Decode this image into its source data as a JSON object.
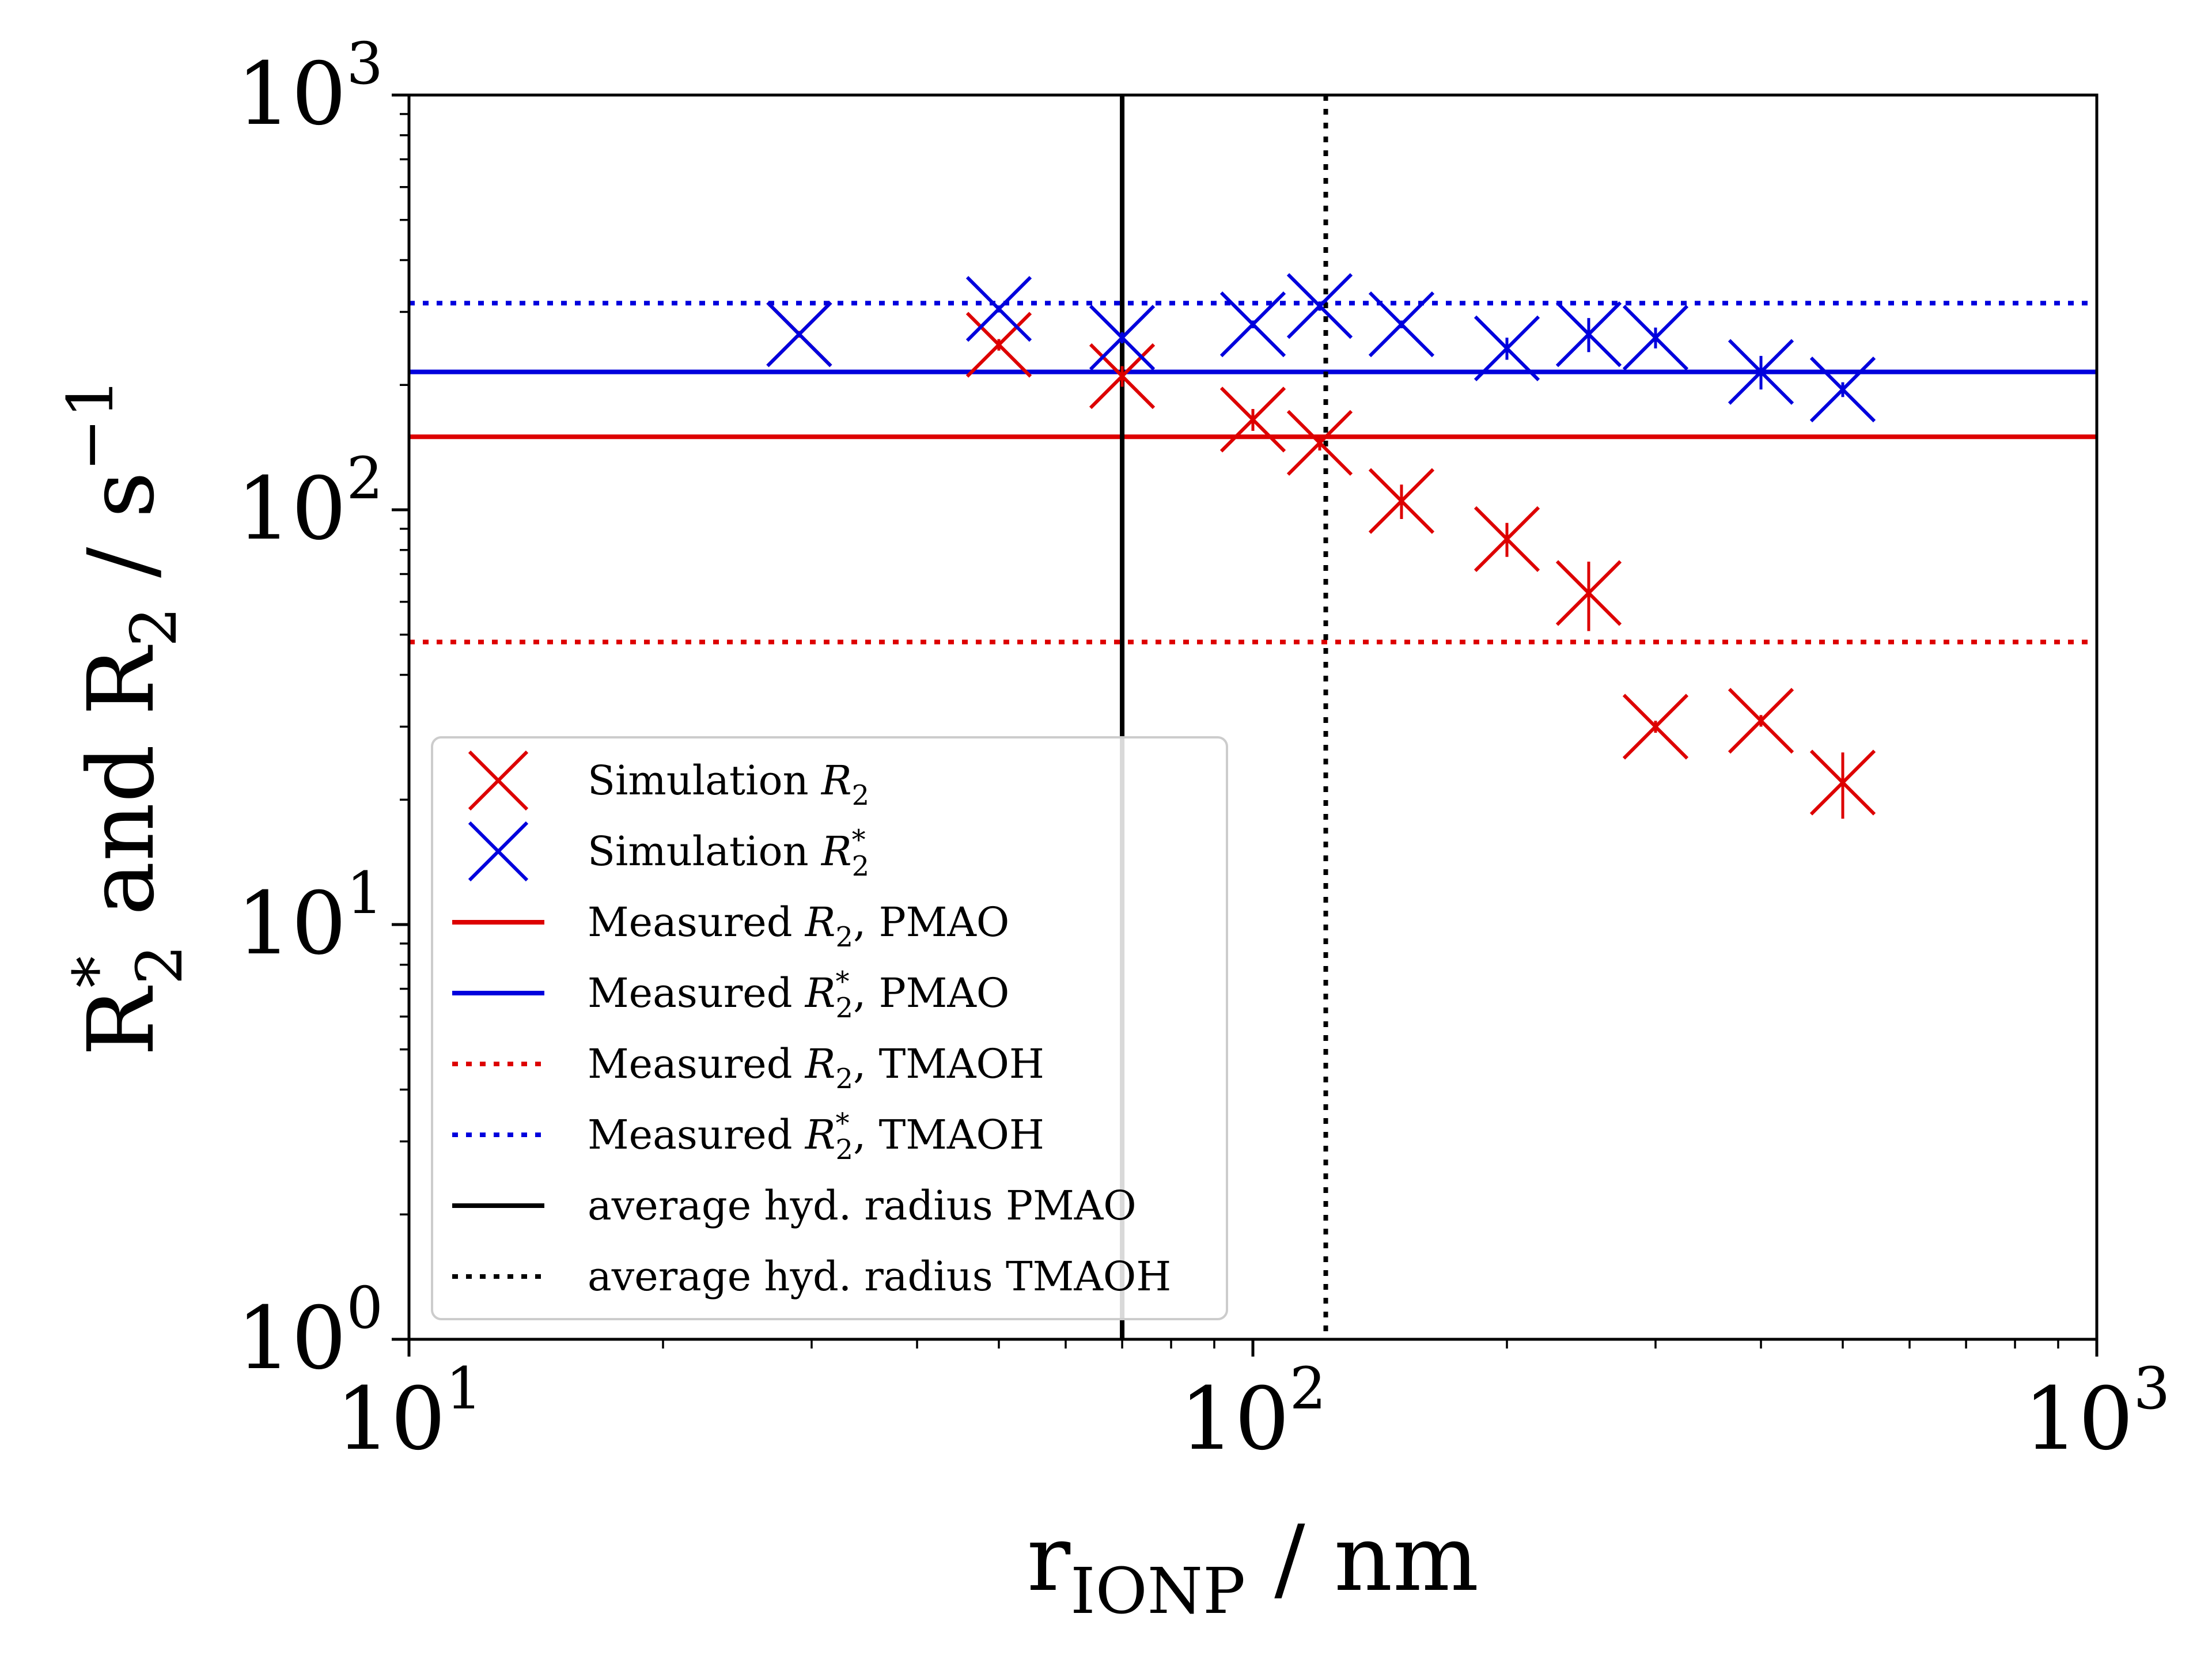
{
  "chart_data": {
    "type": "scatter",
    "x_scale": "log",
    "y_scale": "log",
    "xlim": [
      10,
      1000
    ],
    "ylim": [
      1,
      1000
    ],
    "x_ticks": [
      {
        "value": 10,
        "base": "10",
        "exp": "1"
      },
      {
        "value": 100,
        "base": "10",
        "exp": "2"
      },
      {
        "value": 1000,
        "base": "10",
        "exp": "3"
      }
    ],
    "y_ticks": [
      {
        "value": 1,
        "base": "10",
        "exp": "0"
      },
      {
        "value": 10,
        "base": "10",
        "exp": "1"
      },
      {
        "value": 100,
        "base": "10",
        "exp": "2"
      },
      {
        "value": 1000,
        "base": "10",
        "exp": "3"
      }
    ],
    "xlabel": {
      "main": "r",
      "sub": "IONP",
      "rest": " / nm"
    },
    "ylabel": {
      "text": "R*2 and R2 / s−1",
      "p1": "R",
      "p1sup": "*",
      "p1sub": "2",
      "p2": " and R",
      "p2sub": "2",
      "p3": " / s",
      "p3sup": "−1"
    },
    "grid": false,
    "legend_position": "lower-left",
    "series": [
      {
        "name": "Simulation R2",
        "kind": "scatter",
        "color": "#dd0000",
        "x": [
          29,
          50,
          70,
          100,
          120,
          150,
          200,
          250,
          300,
          400,
          500
        ],
        "y": [
          265,
          250,
          210,
          165,
          145,
          105,
          85,
          63,
          30,
          31,
          22
        ],
        "yerr": [
          5,
          8,
          12,
          10,
          6,
          10,
          8,
          12,
          1,
          1,
          4
        ]
      },
      {
        "name": "Simulation R2*",
        "kind": "scatter",
        "color": "#0000dd",
        "x": [
          29,
          50,
          70,
          100,
          120,
          150,
          200,
          250,
          300,
          400,
          500
        ],
        "y": [
          265,
          305,
          260,
          280,
          310,
          280,
          245,
          265,
          260,
          215,
          195
        ],
        "yerr": [
          4,
          6,
          8,
          6,
          8,
          6,
          15,
          25,
          15,
          20,
          8
        ]
      },
      {
        "name": "Measured R2, PMAO",
        "kind": "hline",
        "color": "#dd0000",
        "style": "solid",
        "y": 150
      },
      {
        "name": "Measured R2*, PMAO",
        "kind": "hline",
        "color": "#0000dd",
        "style": "solid",
        "y": 215
      },
      {
        "name": "Measured R2, TMAOH",
        "kind": "hline",
        "color": "#dd0000",
        "style": "dotted",
        "y": 48
      },
      {
        "name": "Measured R2*, TMAOH",
        "kind": "hline",
        "color": "#0000dd",
        "style": "dotted",
        "y": 315
      },
      {
        "name": "average hyd. radius PMAO",
        "kind": "vline",
        "color": "#000000",
        "style": "solid",
        "x": 70
      },
      {
        "name": "average hyd. radius TMAOH",
        "kind": "vline",
        "color": "#000000",
        "style": "dotted",
        "x": 122
      }
    ],
    "legend": [
      {
        "pre": "Simulation ",
        "math": "R",
        "sup": "",
        "sub": "2",
        "post": ""
      },
      {
        "pre": "Simulation ",
        "math": "R",
        "sup": "*",
        "sub": "2",
        "post": ""
      },
      {
        "pre": "Measured ",
        "math": "R",
        "sup": "",
        "sub": "2",
        "post": ", PMAO"
      },
      {
        "pre": "Measured ",
        "math": "R",
        "sup": "*",
        "sub": "2",
        "post": ", PMAO"
      },
      {
        "pre": "Measured ",
        "math": "R",
        "sup": "",
        "sub": "2",
        "post": ", TMAOH"
      },
      {
        "pre": "Measured ",
        "math": "R",
        "sup": "*",
        "sub": "2",
        "post": ", TMAOH"
      },
      {
        "pre": "average hyd. radius PMAO",
        "math": "",
        "sup": "",
        "sub": "",
        "post": ""
      },
      {
        "pre": "average hyd. radius TMAOH",
        "math": "",
        "sup": "",
        "sub": "",
        "post": ""
      }
    ]
  }
}
